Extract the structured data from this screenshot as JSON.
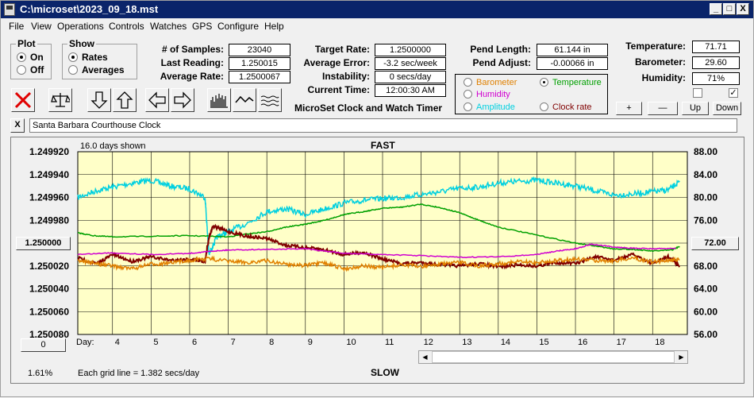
{
  "window": {
    "title": "C:\\microset\\2023_09_18.mst",
    "min": "_",
    "max": "□",
    "close": "X"
  },
  "menu": [
    "File",
    "View",
    "Operations",
    "Controls",
    "Watches",
    "GPS",
    "Configure",
    "Help"
  ],
  "plot_group": {
    "title": "Plot",
    "on": "On",
    "off": "Off",
    "selected": "On"
  },
  "show_group": {
    "title": "Show",
    "rates": "Rates",
    "averages": "Averages",
    "selected": "Rates"
  },
  "stats": {
    "samples_label": "# of Samples:",
    "samples": "23040",
    "last_label": "Last Reading:",
    "last": "1.250015",
    "avg_rate_label": "Average Rate:",
    "avg_rate": "1.2500067",
    "target_label": "Target Rate:",
    "target": "1.2500000",
    "avg_err_label": "Average Error:",
    "avg_err": "-3.2 sec/week",
    "instab_label": "Instability:",
    "instab": "0 secs/day",
    "time_label": "Current Time:",
    "time": "12:00:30 AM",
    "app_name": "MicroSet Clock and Watch Timer",
    "pend_len_label": "Pend Length:",
    "pend_len": "61.144 in",
    "pend_adj_label": "Pend Adjust:",
    "pend_adj": "-0.00066 in",
    "temp_label": "Temperature:",
    "temp": "71.71",
    "baro_label": "Barometer:",
    "baro": "29.60",
    "humid_label": "Humidity:",
    "humid": "71%"
  },
  "legend": {
    "barometer": "Barometer",
    "temperature": "Temperature",
    "humidity": "Humidity",
    "amplitude": "Amplitude",
    "clock_rate": "Clock rate",
    "selected": "Temperature",
    "colors": {
      "barometer": "#e08000",
      "temperature": "#00a000",
      "humidity": "#d000d0",
      "amplitude": "#00d0e0",
      "clock_rate": "#800000"
    }
  },
  "sensor_buttons": {
    "plus": "+",
    "minus": "—",
    "up": "Up",
    "down": "Down"
  },
  "checkbox_right_checked": "✓",
  "clock_name": "Santa Barbara Courthouse Clock",
  "clear_button": "X",
  "chart_labels": {
    "days_shown": "16.0 days shown",
    "fast": "FAST",
    "slow": "SLOW",
    "grid_note": "Each grid line = 1.382 secs/day",
    "day_label": "Day:",
    "center_value": "1.250000",
    "right_center_value": "72.00",
    "bottom_left_button": "0",
    "percent": "1.61%"
  },
  "chart_data": {
    "type": "line",
    "x_axis": {
      "label": "Day:",
      "range": [
        3.1,
        18.9
      ],
      "ticks": [
        4,
        5,
        6,
        7,
        8,
        9,
        10,
        11,
        12,
        13,
        14,
        15,
        16,
        17,
        18
      ]
    },
    "y_left": {
      "ticks": [
        "1.249920",
        "1.249940",
        "1.249960",
        "1.249980",
        "1.250000",
        "1.250020",
        "1.250040",
        "1.250060",
        "1.250080"
      ],
      "range": [
        1.24992,
        1.25008
      ],
      "inverted": true
    },
    "y_right": {
      "ticks": [
        "88.00",
        "84.00",
        "80.00",
        "76.00",
        "72.00",
        "68.00",
        "64.00",
        "60.00",
        "56.00"
      ],
      "range": [
        56,
        88
      ]
    },
    "grid": true,
    "series": [
      {
        "key": "amplitude",
        "color": "#00d0e0",
        "x": [
          3.1,
          3.6,
          4.0,
          4.5,
          5.0,
          5.5,
          6.0,
          6.4,
          6.5,
          6.7,
          7.0,
          7.5,
          8.0,
          8.5,
          9.0,
          9.5,
          10.0,
          10.5,
          11.0,
          11.5,
          12.0,
          12.5,
          13.0,
          13.5,
          14.0,
          14.5,
          15.0,
          15.5,
          16.0,
          16.5,
          17.0,
          17.5,
          18.0,
          18.4,
          18.7
        ],
        "values": [
          80.0,
          81.2,
          81.8,
          82.5,
          83.0,
          82.0,
          81.5,
          80.0,
          70.0,
          73.0,
          74.0,
          75.5,
          77.5,
          78.0,
          77.0,
          78.0,
          79.0,
          79.5,
          79.8,
          80.0,
          80.5,
          81.0,
          81.6,
          81.8,
          82.5,
          82.8,
          83.0,
          82.5,
          82.0,
          81.2,
          80.4,
          80.6,
          81.0,
          81.3,
          82.7
        ]
      },
      {
        "key": "temperature",
        "color": "#00a000",
        "x": [
          3.1,
          3.5,
          4.0,
          5.0,
          6.0,
          7.0,
          7.5,
          8.0,
          8.5,
          9.0,
          9.5,
          10.0,
          10.5,
          11.0,
          11.5,
          12.0,
          12.5,
          13.0,
          13.5,
          14.0,
          15.0,
          16.0,
          16.5,
          17.0,
          17.5,
          18.0,
          18.5,
          18.7
        ],
        "values": [
          73.8,
          73.3,
          73.1,
          73.2,
          73.3,
          73.1,
          73.6,
          74.0,
          74.8,
          75.3,
          76.0,
          77.0,
          77.5,
          78.1,
          78.3,
          78.8,
          78.2,
          77.3,
          76.0,
          74.8,
          73.4,
          72.0,
          71.5,
          71.0,
          70.9,
          70.6,
          70.8,
          71.4
        ]
      },
      {
        "key": "clock_rate",
        "color": "#800000",
        "x": [
          3.1,
          3.6,
          4.0,
          4.5,
          5.0,
          5.5,
          6.0,
          6.4,
          6.5,
          6.6,
          7.0,
          7.5,
          8.0,
          8.5,
          9.0,
          9.5,
          10.0,
          10.5,
          11.0,
          11.5,
          12.0,
          12.5,
          13.0,
          13.5,
          14.0,
          14.5,
          15.0,
          15.5,
          16.0,
          16.5,
          17.0,
          17.5,
          18.0,
          18.4,
          18.7
        ],
        "values": [
          1.250013,
          1.250018,
          1.25001,
          1.250016,
          1.250012,
          1.250015,
          1.250014,
          1.250016,
          1.249995,
          1.249985,
          1.24999,
          1.249994,
          1.249996,
          1.250002,
          1.250004,
          1.250006,
          1.25001,
          1.250008,
          1.250014,
          1.250018,
          1.250017,
          1.250019,
          1.25002,
          1.250018,
          1.250021,
          1.250019,
          1.25002,
          1.250017,
          1.250018,
          1.250012,
          1.250015,
          1.25001,
          1.250018,
          1.250012,
          1.25002
        ]
      },
      {
        "key": "humidity",
        "color": "#d000d0",
        "x": [
          3.1,
          4.0,
          5.0,
          6.0,
          6.6,
          7.0,
          8.0,
          9.0,
          10.0,
          11.0,
          12.0,
          13.0,
          14.0,
          15.0,
          15.5,
          16.0,
          16.4,
          17.0,
          17.5,
          18.0,
          18.6
        ],
        "values": [
          70.0,
          70.3,
          70.0,
          70.2,
          70.6,
          70.8,
          70.9,
          71.0,
          70.2,
          70.0,
          69.8,
          69.5,
          69.6,
          70.0,
          70.6,
          71.0,
          71.8,
          71.3,
          71.1,
          71.0,
          71.1
        ]
      },
      {
        "key": "barometer",
        "color": "#e08000",
        "x": [
          3.1,
          3.5,
          4.0,
          4.5,
          5.0,
          5.5,
          6.0,
          6.5,
          7.0,
          7.5,
          8.0,
          8.5,
          9.0,
          9.5,
          10.0,
          10.5,
          11.0,
          11.5,
          12.0,
          12.5,
          13.0,
          13.5,
          14.0,
          14.5,
          15.0,
          15.5,
          16.0,
          16.5,
          17.0,
          17.5,
          18.0,
          18.4,
          18.7
        ],
        "values": [
          69.0,
          68.5,
          68.0,
          67.5,
          68.3,
          68.5,
          69.0,
          69.3,
          68.8,
          68.6,
          68.9,
          68.3,
          68.1,
          68.5,
          67.5,
          68.0,
          67.7,
          68.2,
          67.9,
          68.3,
          68.6,
          68.0,
          68.4,
          68.7,
          68.6,
          68.9,
          69.2,
          69.0,
          68.9,
          69.4,
          68.7,
          69.0,
          69.1
        ]
      }
    ]
  }
}
